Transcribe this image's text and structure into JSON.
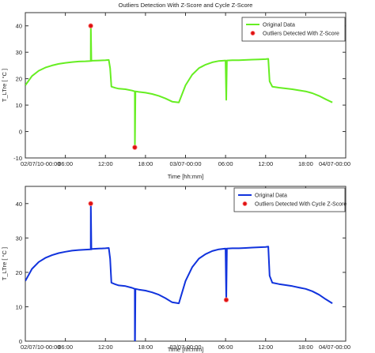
{
  "chart_data": [
    {
      "type": "line",
      "title": "Outliers Detection With Z-Score and Cycle Z-Score",
      "xlabel": "Time [hh:mm]",
      "ylabel": "T_LTre [ °C ]",
      "xlim": [
        0,
        48
      ],
      "ylim": [
        -10,
        45
      ],
      "xticks": [
        0,
        6,
        12,
        18,
        24,
        30,
        36,
        42,
        48
      ],
      "xtick_labels": [
        "02/07/10-00:00",
        "06:00",
        "12:00",
        "18:00",
        "03/07-00:00",
        "06:00",
        "12:00",
        "18:00",
        "04/07-00:00"
      ],
      "yticks": [
        -10,
        0,
        10,
        20,
        30,
        40
      ],
      "legend_position": "top-right",
      "grid": false,
      "series": [
        {
          "name": "Original Data",
          "style": "line",
          "color": "#66ee22",
          "x": [
            0,
            1,
            2,
            3,
            4,
            5,
            6,
            7,
            8,
            9,
            9.8,
            9.81,
            9.9,
            10,
            11,
            12,
            12.5,
            12.7,
            12.9,
            13.5,
            14,
            15,
            16,
            16.4,
            16.41,
            16.5,
            17,
            18,
            19,
            20,
            21,
            22,
            23,
            24,
            25,
            26,
            27,
            28,
            29,
            30,
            30.1,
            30.2,
            31,
            32,
            33,
            34,
            35,
            36,
            36.4,
            36.6,
            37,
            38,
            39,
            40,
            41,
            42,
            43,
            44,
            45,
            46
          ],
          "y": [
            17.5,
            21,
            23,
            24.2,
            25,
            25.6,
            26,
            26.3,
            26.5,
            26.6,
            26.7,
            40,
            26.7,
            26.8,
            26.9,
            27,
            27.1,
            24,
            17,
            16.5,
            16.2,
            16,
            15.5,
            15.2,
            -6,
            15.2,
            15,
            14.7,
            14.2,
            13.5,
            12.5,
            11.3,
            11,
            17.5,
            21.5,
            24,
            25.3,
            26.2,
            26.7,
            26.9,
            12,
            26.9,
            27,
            27,
            27.1,
            27.2,
            27.3,
            27.4,
            27.5,
            19,
            17,
            16.6,
            16.3,
            16,
            15.6,
            15.2,
            14.5,
            13.5,
            12.2,
            11
          ]
        },
        {
          "name": "Outliers Detected With Z-Score",
          "style": "marker",
          "color": "#dd1111",
          "x": [
            9.8,
            16.4
          ],
          "y": [
            40,
            -6
          ]
        }
      ]
    },
    {
      "type": "line",
      "title": "",
      "xlabel": "Time [hh:mm]",
      "ylabel": "T_LTre [ °C ]",
      "xlim": [
        0,
        48
      ],
      "ylim": [
        0,
        45
      ],
      "xticks": [
        0,
        6,
        12,
        18,
        24,
        30,
        36,
        42,
        48
      ],
      "xtick_labels": [
        "02/07/10-00:00",
        "06:00",
        "12:00",
        "18:00",
        "03/07-00:00",
        "06:00",
        "12:00",
        "18:00",
        "04/07-00:00"
      ],
      "yticks": [
        0,
        10,
        20,
        30,
        40
      ],
      "legend_position": "top-right",
      "grid": false,
      "series": [
        {
          "name": "Original Data",
          "style": "line",
          "color": "#1133dd",
          "x": [
            0,
            1,
            2,
            3,
            4,
            5,
            6,
            7,
            8,
            9,
            9.8,
            9.81,
            9.9,
            10,
            11,
            12,
            12.5,
            12.7,
            12.9,
            13.5,
            14,
            15,
            16,
            16.4,
            16.41,
            16.5,
            17,
            18,
            19,
            20,
            21,
            22,
            23,
            24,
            25,
            26,
            27,
            28,
            29,
            30,
            30.1,
            30.2,
            31,
            32,
            33,
            34,
            35,
            36,
            36.4,
            36.6,
            37,
            38,
            39,
            40,
            41,
            42,
            43,
            44,
            45,
            46
          ],
          "y": [
            17.5,
            21,
            23,
            24.2,
            25,
            25.6,
            26,
            26.3,
            26.5,
            26.6,
            26.7,
            40,
            26.7,
            26.8,
            26.9,
            27,
            27.1,
            24,
            17,
            16.5,
            16.2,
            16,
            15.5,
            15.2,
            -6,
            15.2,
            15,
            14.7,
            14.2,
            13.5,
            12.5,
            11.3,
            11,
            17.5,
            21.5,
            24,
            25.3,
            26.2,
            26.7,
            26.9,
            12,
            26.9,
            27,
            27,
            27.1,
            27.2,
            27.3,
            27.4,
            27.5,
            19,
            17,
            16.6,
            16.3,
            16,
            15.6,
            15.2,
            14.5,
            13.5,
            12.2,
            11
          ]
        },
        {
          "name": "Outliers Detected With Cycle Z-Score",
          "style": "marker",
          "color": "#dd1111",
          "x": [
            9.8,
            16.4,
            30.1
          ],
          "y": [
            40,
            -6,
            12
          ]
        }
      ]
    }
  ]
}
